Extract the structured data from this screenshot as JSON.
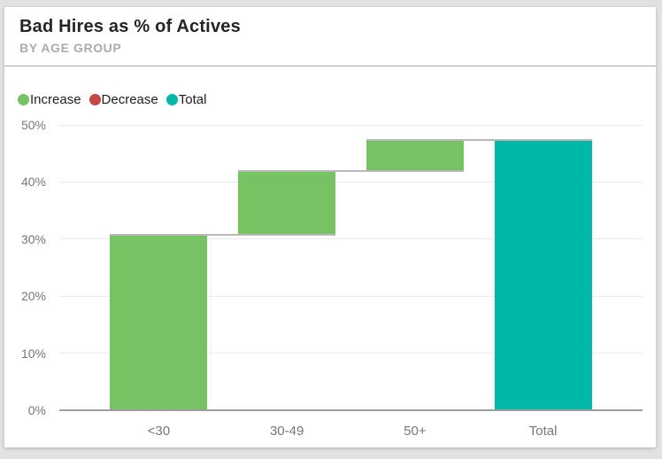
{
  "header": {
    "title": "Bad Hires as % of Actives",
    "subtitle": "BY AGE GROUP"
  },
  "legend": {
    "items": [
      {
        "label": "Increase",
        "color": "#77C364"
      },
      {
        "label": "Decrease",
        "color": "#C54746"
      },
      {
        "label": "Total",
        "color": "#00B8AA"
      }
    ]
  },
  "chart_data": {
    "type": "bar",
    "subtype": "waterfall",
    "title": "Bad Hires as % of Actives",
    "subtitle": "BY AGE GROUP",
    "categories": [
      "<30",
      "30-49",
      "50+",
      "Total"
    ],
    "series": [
      {
        "name": "Increase",
        "role": "increase",
        "increments": [
          30.8,
          11.2,
          5.4
        ]
      },
      {
        "name": "Decrease",
        "role": "decrease",
        "increments": [
          0,
          0,
          0
        ]
      },
      {
        "name": "Total",
        "role": "total",
        "value": 47.4
      }
    ],
    "cumulative": [
      30.8,
      42.0,
      47.4
    ],
    "xlabel": "",
    "ylabel": "",
    "ylim": [
      0,
      50
    ],
    "y_ticks": [
      "0%",
      "10%",
      "20%",
      "30%",
      "40%",
      "50%"
    ],
    "grid": true,
    "legend_position": "top-left",
    "colors": {
      "increase": "#77C364",
      "decrease": "#C54746",
      "total": "#00B8AA",
      "gridline": "#ebebeb",
      "axis_line": "#9e9e9e",
      "connector": "#b9b9b9",
      "tick_label": "#777777",
      "title_text": "#252525",
      "subtitle_text": "#ababab"
    }
  }
}
